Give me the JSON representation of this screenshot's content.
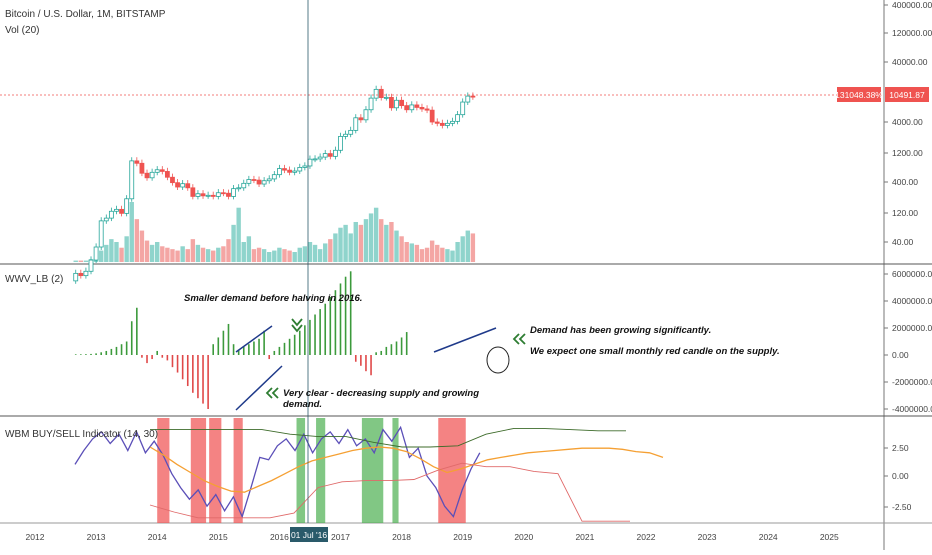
{
  "header": {
    "title": "Bitcoin / U.S. Dollar, 1M, BITSTAMP",
    "vol_label": "Vol (20)"
  },
  "colors": {
    "up": "#26a69a",
    "down": "#ef5350",
    "line_blue": "#5b4fb8",
    "band_red": "#f05a5a",
    "band_green": "#4caf50",
    "orange": "#f5a033",
    "dark_green": "#3d6b2a"
  },
  "price_badges": {
    "pct": "131048.38%",
    "price": "10491.87"
  },
  "crosshair_label": "01 Jul '16",
  "x_axis": {
    "ticks": [
      "2012",
      "2013",
      "2014",
      "2015",
      "2016",
      "2017",
      "2018",
      "2019",
      "2020",
      "2021",
      "2022",
      "2023",
      "2024",
      "2025"
    ]
  },
  "chart_data": [
    {
      "type": "candlestick",
      "title": "Bitcoin / U.S. Dollar, 1M, BITSTAMP",
      "y_scale": "log",
      "y_ticks": [
        "400000.00",
        "120000.00",
        "40000.00",
        "4000.00",
        "1200.00",
        "400.00",
        "120.00",
        "40.00"
      ],
      "last_price": 10491.87,
      "x_start": "2012-09",
      "candles": [
        [
          9,
          12
        ],
        [
          12,
          11
        ],
        [
          11,
          13
        ],
        [
          13,
          20
        ],
        [
          20,
          33
        ],
        [
          33,
          90
        ],
        [
          90,
          100
        ],
        [
          100,
          130
        ],
        [
          130,
          140
        ],
        [
          140,
          120
        ],
        [
          120,
          210
        ],
        [
          210,
          900
        ],
        [
          900,
          820
        ],
        [
          820,
          560
        ],
        [
          560,
          470
        ],
        [
          470,
          580
        ],
        [
          580,
          640
        ],
        [
          640,
          600
        ],
        [
          600,
          480
        ],
        [
          480,
          390
        ],
        [
          390,
          330
        ],
        [
          330,
          375
        ],
        [
          375,
          320
        ],
        [
          320,
          230
        ],
        [
          230,
          255
        ],
        [
          255,
          235
        ],
        [
          235,
          240
        ],
        [
          240,
          230
        ],
        [
          230,
          265
        ],
        [
          265,
          260
        ],
        [
          260,
          230
        ],
        [
          230,
          310
        ],
        [
          310,
          320
        ],
        [
          320,
          380
        ],
        [
          380,
          440
        ],
        [
          440,
          430
        ],
        [
          430,
          370
        ],
        [
          370,
          420
        ],
        [
          420,
          450
        ],
        [
          450,
          530
        ],
        [
          530,
          670
        ],
        [
          670,
          630
        ],
        [
          630,
          580
        ],
        [
          580,
          610
        ],
        [
          610,
          700
        ],
        [
          700,
          740
        ],
        [
          740,
          960
        ],
        [
          960,
          970
        ],
        [
          970,
          1040
        ],
        [
          1040,
          1190
        ],
        [
          1190,
          1070
        ],
        [
          1070,
          1350
        ],
        [
          1350,
          2300
        ],
        [
          2300,
          2500
        ],
        [
          2500,
          2900
        ],
        [
          2900,
          4700
        ],
        [
          4700,
          4350
        ],
        [
          4350,
          6400
        ],
        [
          6400,
          10000
        ],
        [
          10000,
          14000
        ],
        [
          14000,
          10200
        ],
        [
          10200,
          10300
        ],
        [
          10300,
          6900
        ],
        [
          6900,
          9200
        ],
        [
          9200,
          7500
        ],
        [
          7500,
          6400
        ],
        [
          6400,
          7700
        ],
        [
          7700,
          7000
        ],
        [
          7000,
          6600
        ],
        [
          6600,
          6300
        ],
        [
          6300,
          4000
        ],
        [
          4000,
          3800
        ],
        [
          3800,
          3500
        ],
        [
          3500,
          3800
        ],
        [
          3800,
          4100
        ],
        [
          4100,
          5300
        ],
        [
          5300,
          8600
        ],
        [
          8600,
          10800
        ],
        [
          10800,
          10490
        ]
      ],
      "volume": [
        1,
        1,
        1,
        2,
        3,
        8,
        12,
        16,
        14,
        10,
        18,
        42,
        30,
        22,
        15,
        12,
        14,
        11,
        10,
        9,
        8,
        11,
        9,
        16,
        12,
        10,
        9,
        8,
        10,
        11,
        16,
        26,
        38,
        14,
        18,
        9,
        10,
        9,
        7,
        8,
        10,
        9,
        8,
        7,
        10,
        11,
        14,
        12,
        9,
        13,
        16,
        20,
        24,
        26,
        20,
        28,
        26,
        30,
        34,
        38,
        30,
        26,
        28,
        22,
        18,
        14,
        13,
        12,
        9,
        10,
        15,
        12,
        10,
        9,
        8,
        14,
        18,
        22,
        20
      ]
    },
    {
      "type": "bar",
      "title": "WWV_LB (2)",
      "y_ticks": [
        "6000000.00",
        "4000000.00",
        "2000000.00",
        "0.00",
        "-2000000.00",
        "-4000000.00"
      ],
      "series_order": "monthly, from 2012-09",
      "values": [
        0.05,
        0.05,
        0.06,
        0.08,
        0.12,
        0.2,
        0.3,
        0.45,
        0.6,
        0.8,
        1.0,
        2.5,
        3.5,
        -0.2,
        -0.6,
        -0.3,
        0.3,
        -0.2,
        -0.4,
        -0.9,
        -1.3,
        -1.8,
        -2.3,
        -2.8,
        -3.2,
        -3.6,
        -4.0,
        0.8,
        1.3,
        1.8,
        2.3,
        0.8,
        0.4,
        0.6,
        0.8,
        1.0,
        1.2,
        1.8,
        -0.3,
        0.3,
        0.6,
        0.9,
        1.2,
        1.5,
        1.8,
        2.2,
        2.6,
        3.0,
        3.4,
        3.8,
        4.3,
        4.8,
        5.3,
        5.8,
        6.2,
        -0.5,
        -0.8,
        -1.2,
        -1.5,
        0.2,
        0.3,
        0.6,
        0.8,
        1.0,
        1.3,
        1.7
      ]
    },
    {
      "type": "line",
      "title": "WBM BUY/SELL Indicator (14, 30)",
      "y_ticks": [
        "2.50",
        "0.00",
        "-2.50"
      ],
      "series": [
        {
          "values": [
            1.0,
            2.2,
            3.2,
            3.8,
            2.8,
            3.6,
            2.2,
            3.8,
            2.0,
            3.0,
            1.8,
            0.2,
            -1.0,
            -2.0,
            -1.2,
            -2.6,
            -1.6,
            -3.0,
            -1.8,
            -3.5,
            -1.0,
            1.6,
            1.4,
            2.6,
            3.2,
            2.2,
            3.6,
            2.0,
            3.2,
            3.8,
            2.8,
            4.0,
            2.6,
            3.2,
            2.0,
            4.0,
            3.0,
            4.2,
            1.6,
            2.4,
            0.0,
            -1.0,
            -2.6,
            -3.5,
            -1.2,
            0.6,
            2.0
          ]
        },
        {
          "values": [
            2.5,
            1.8,
            1.0,
            0.3,
            -0.4,
            -0.9,
            -1.3,
            -1.4,
            -0.9,
            -0.4,
            0.2,
            0.8,
            1.3,
            1.6,
            1.9,
            2.2,
            2.4,
            2.5,
            2.4,
            2.1,
            1.5,
            0.8,
            0.3,
            0.6,
            1.0,
            1.4,
            1.6,
            1.8,
            2.0,
            2.1,
            2.2,
            2.3,
            2.4,
            2.4,
            2.4,
            2.3,
            2.1,
            2.0,
            1.6
          ]
        },
        {
          "values": [
            -2.5,
            -3.1,
            -3.6,
            -3.6,
            -3.6,
            -3.6,
            -3.2,
            -1.0,
            -0.5,
            -0.4,
            -0.4,
            -0.3,
            0.5,
            1.1,
            0.8,
            0.8,
            0.4,
            0.2,
            -3.9,
            -3.9,
            -3.9
          ]
        },
        {
          "values": [
            4.0,
            4.0,
            4.0,
            4.0,
            4.0,
            3.6,
            3.4,
            3.4,
            2.9,
            2.5,
            2.5,
            2.6,
            3.6,
            4.1,
            4.1,
            4.0,
            3.9,
            3.9
          ]
        }
      ],
      "bands_red": [
        [
          2014.0,
          2014.2
        ],
        [
          2014.55,
          2014.8
        ],
        [
          2014.85,
          2015.05
        ],
        [
          2015.25,
          2015.4
        ],
        [
          2018.6,
          2019.05
        ]
      ],
      "bands_green": [
        [
          2016.28,
          2016.42
        ],
        [
          2016.6,
          2016.75
        ],
        [
          2017.35,
          2017.7
        ],
        [
          2017.85,
          2017.95
        ]
      ]
    }
  ],
  "annotations": {
    "halving": "Smaller demand before halving in 2016.",
    "clear_line1": "Very clear - decreasing supply and growing",
    "clear_line2": "demand.",
    "growing": "Demand has been growing significantly.",
    "expect": "We expect one small monthly red candle on the supply."
  }
}
